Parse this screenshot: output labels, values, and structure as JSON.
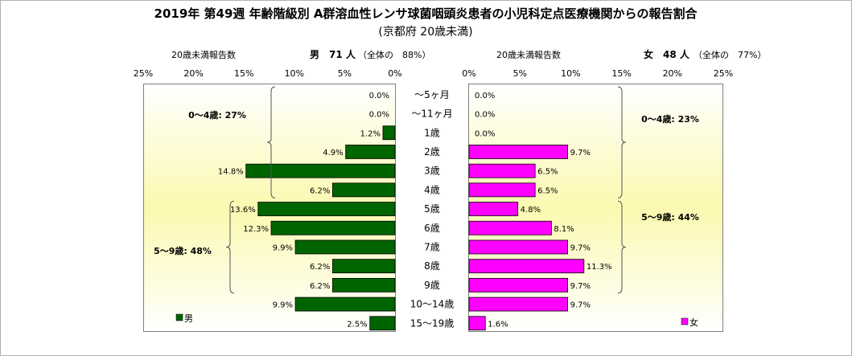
{
  "chart_data": {
    "type": "bar",
    "title": "2019年 第49週 年齢階級別 A群溶血性レンサ球菌咽頭炎患者の小児科定点医療機関からの報告割合",
    "subtitle": "(京都府 20歳未満)",
    "categories": [
      "～5ヶ月",
      "～11ヶ月",
      "1歳",
      "2歳",
      "3歳",
      "4歳",
      "5歳",
      "6歳",
      "7歳",
      "8歳",
      "9歳",
      "10～14歳",
      "15～19歳"
    ],
    "xlim": [
      0,
      25
    ],
    "xticks": [
      "0%",
      "5%",
      "10%",
      "15%",
      "20%",
      "25%"
    ],
    "series": [
      {
        "name": "男",
        "color": "#006400",
        "header_label": "20歳未満報告数",
        "header_value": "男　71 人",
        "header_share": "（全体の　88%）",
        "values": [
          0.0,
          0.0,
          1.2,
          4.9,
          14.8,
          6.2,
          13.6,
          12.3,
          9.9,
          6.2,
          6.2,
          9.9,
          2.5
        ],
        "labels": [
          "0.0%",
          "0.0%",
          "1.2%",
          "4.9%",
          "14.8%",
          "6.2%",
          "13.6%",
          "12.3%",
          "9.9%",
          "6.2%",
          "6.2%",
          "9.9%",
          "2.5%"
        ],
        "groups": [
          {
            "label": "0～4歳: 27%",
            "from": 0,
            "to": 5
          },
          {
            "label": "5～9歳: 48%",
            "from": 6,
            "to": 10
          }
        ]
      },
      {
        "name": "女",
        "color": "#ff00ff",
        "header_label": "20歳未満報告数",
        "header_value": "女　48 人",
        "header_share": "（全体の　77%）",
        "values": [
          0.0,
          0.0,
          0.0,
          9.7,
          6.5,
          6.5,
          4.8,
          8.1,
          9.7,
          11.3,
          9.7,
          9.7,
          1.6
        ],
        "labels": [
          "0.0%",
          "0.0%",
          "0.0%",
          "9.7%",
          "6.5%",
          "6.5%",
          "4.8%",
          "8.1%",
          "9.7%",
          "11.3%",
          "9.7%",
          "9.7%",
          "1.6%"
        ],
        "groups": [
          {
            "label": "0～4歳: 23%",
            "from": 0,
            "to": 5
          },
          {
            "label": "5～9歳: 44%",
            "from": 6,
            "to": 10
          }
        ]
      }
    ]
  }
}
